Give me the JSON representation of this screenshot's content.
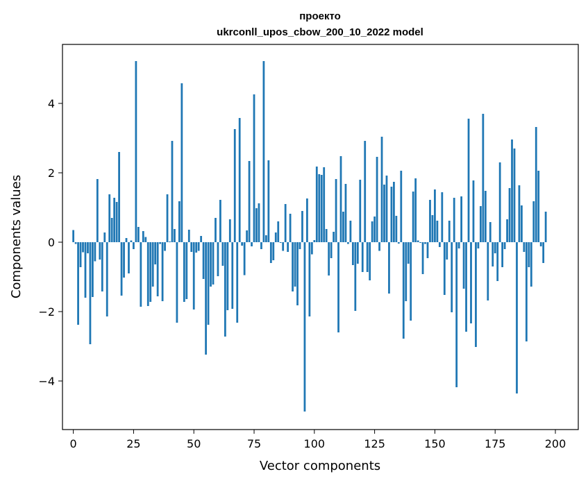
{
  "chart_data": {
    "type": "bar",
    "title_line1": "проекто",
    "title_line2": "ukrconll_upos_cbow_200_10_2022 model",
    "xlabel": "Vector components",
    "ylabel": "Components values",
    "xlim": [
      -4.5,
      209.5
    ],
    "ylim": [
      -5.4,
      5.7
    ],
    "xticks": [
      0,
      25,
      50,
      75,
      100,
      125,
      150,
      175,
      200
    ],
    "yticks": [
      -4,
      -2,
      0,
      2,
      4
    ],
    "xtick_labels": [
      "0",
      "25",
      "50",
      "75",
      "100",
      "125",
      "150",
      "175",
      "200"
    ],
    "ytick_labels": [
      "−4",
      "−2",
      "0",
      "2",
      "4"
    ],
    "grid": false,
    "bar_color": "#1f77b4",
    "values": [
      0.35,
      -0.05,
      -2.38,
      -0.72,
      -0.29,
      -1.6,
      -0.32,
      -2.94,
      -1.58,
      -0.55,
      1.82,
      -0.5,
      -1.42,
      0.28,
      -2.14,
      1.38,
      0.7,
      1.28,
      1.16,
      2.6,
      -1.54,
      -1.02,
      0.12,
      -0.9,
      0.05,
      -0.2,
      5.22,
      0.44,
      -1.86,
      0.32,
      0.15,
      -1.84,
      -1.72,
      -1.28,
      -0.64,
      -1.56,
      -0.05,
      -1.7,
      -0.25,
      1.38,
      0.02,
      2.92,
      0.38,
      -2.32,
      1.18,
      4.58,
      -1.72,
      -1.64,
      0.36,
      -0.28,
      -1.94,
      -0.3,
      -0.25,
      0.18,
      -1.06,
      -3.24,
      -2.38,
      -1.28,
      -1.22,
      0.7,
      -0.98,
      1.22,
      -0.68,
      -2.72,
      -1.96,
      0.66,
      -1.92,
      3.26,
      -2.32,
      3.58,
      -0.1,
      -0.95,
      0.34,
      2.34,
      -0.12,
      4.26,
      0.98,
      1.12,
      -0.2,
      5.22,
      0.2,
      2.36,
      -0.6,
      -0.52,
      0.28,
      0.6,
      -0.02,
      -0.25,
      1.1,
      -0.28,
      0.82,
      -1.42,
      -1.28,
      -1.82,
      -0.2,
      0.9,
      -4.88,
      1.26,
      -2.14,
      -0.35,
      0.06,
      2.18,
      1.96,
      1.94,
      2.16,
      0.38,
      -0.96,
      -0.46,
      0.3,
      1.82,
      -2.6,
      2.48,
      0.88,
      1.68,
      -0.05,
      0.62,
      -0.66,
      -1.98,
      -0.62,
      1.8,
      -0.86,
      2.92,
      -0.86,
      -1.1,
      0.6,
      0.74,
      2.46,
      -0.25,
      3.04,
      1.66,
      1.92,
      -1.48,
      1.6,
      1.74,
      0.76,
      -0.04,
      2.06,
      -2.78,
      -1.7,
      -0.62,
      -2.26,
      1.46,
      1.84,
      0.05,
      -0.02,
      -0.92,
      -0.05,
      -0.46,
      1.22,
      0.78,
      1.52,
      0.62,
      -0.14,
      1.44,
      -1.52,
      -0.5,
      0.62,
      -2.02,
      1.28,
      -4.18,
      -0.18,
      1.32,
      -1.34,
      -2.58,
      3.56,
      -2.34,
      1.78,
      -3.02,
      -0.18,
      1.04,
      3.7,
      1.48,
      -1.68,
      0.58,
      -0.7,
      -0.32,
      -1.12,
      2.3,
      -0.72,
      -0.2,
      0.66,
      1.56,
      2.96,
      2.7,
      -4.36,
      1.64,
      1.06,
      -0.28,
      -2.86,
      -0.72,
      -1.28,
      1.18,
      3.32,
      2.06,
      -0.12,
      -0.6,
      0.88
    ]
  }
}
